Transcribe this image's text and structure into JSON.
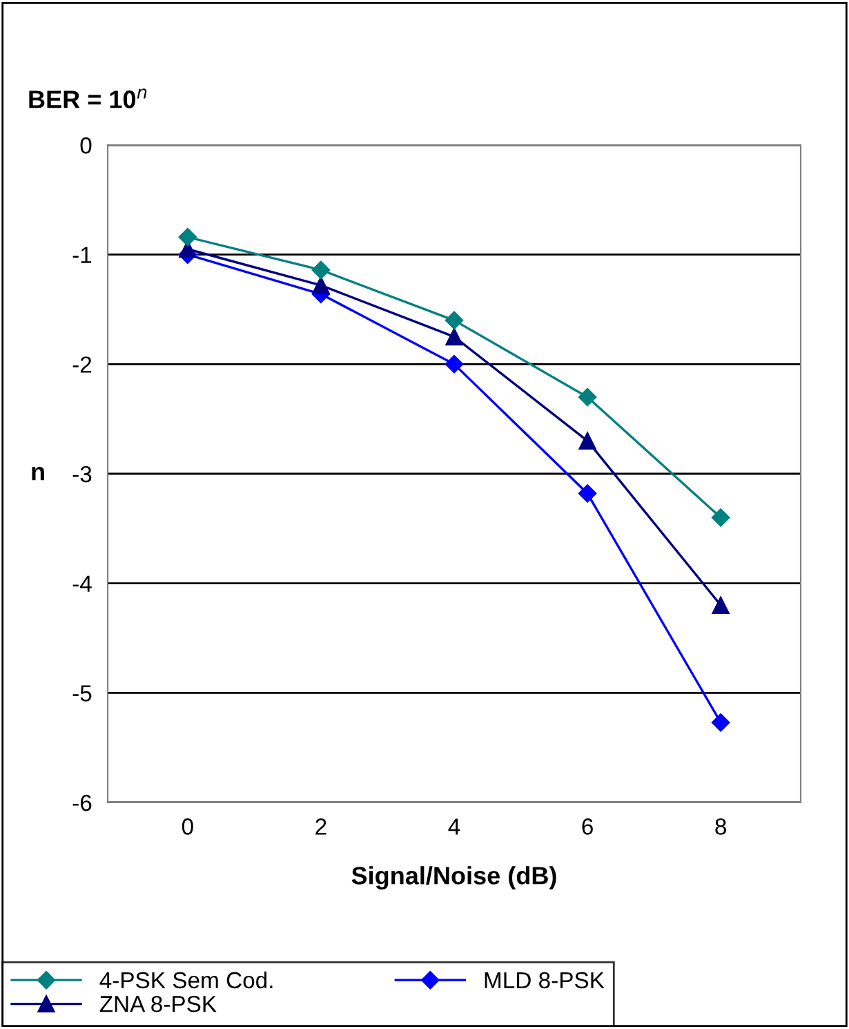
{
  "chart_data": {
    "type": "line",
    "title": "BER = 10$^{n}$",
    "ylabel": "n",
    "xlabel": "Signal/Noise (dB)",
    "categories": [
      "0",
      "2",
      "4",
      "6",
      "8"
    ],
    "series": [
      {
        "name": "4-PSK Sem Cod.",
        "color": "#008080",
        "marker": "diamond",
        "values": [
          -0.84,
          -1.14,
          -1.6,
          -2.3,
          -3.4
        ]
      },
      {
        "name": "ZNA 8-PSK",
        "color": "#000080",
        "marker": "triangle",
        "values": [
          -0.95,
          -1.28,
          -1.75,
          -2.7,
          -4.2
        ]
      },
      {
        "name": "MLD 8-PSK",
        "color": "#0000ff",
        "marker": "diamond",
        "values": [
          -1.0,
          -1.36,
          -2.0,
          -3.18,
          -5.27
        ]
      }
    ],
    "ylim": [
      -6,
      0
    ],
    "yticks": [
      -6,
      -5,
      -4,
      -3,
      -2,
      -1,
      0
    ],
    "grid": "y",
    "legend": "bottom",
    "line_style": "solid"
  }
}
